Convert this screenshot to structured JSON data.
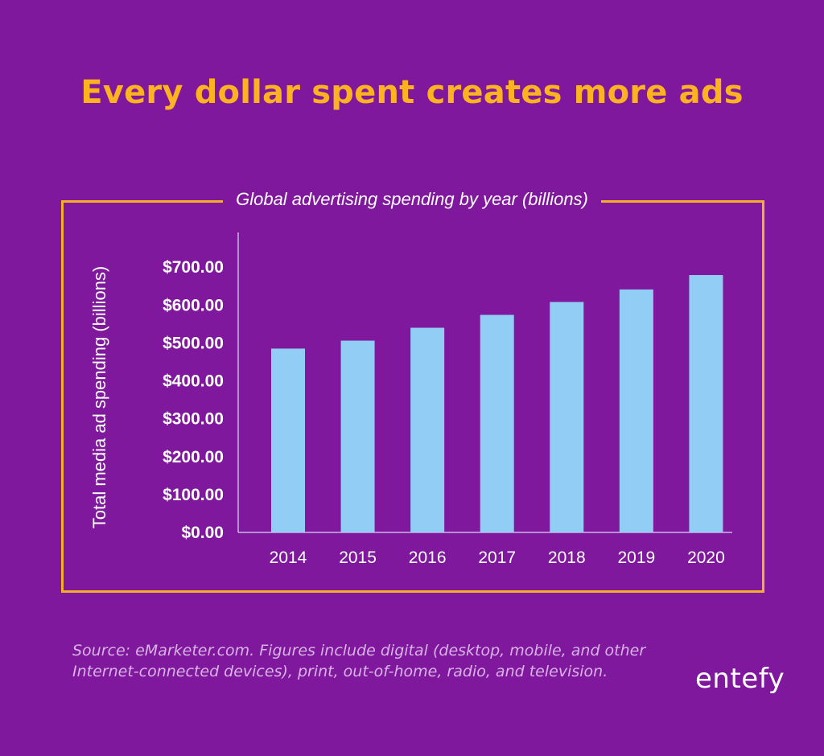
{
  "headline": "Every dollar spent creates more ads",
  "source_note": "Source: eMarketer.com. Figures include digital (desktop, mobile, and other Internet-connected devices), print, out-of-home, radio, and television.",
  "logo_text": "entefy",
  "colors": {
    "background": "#7f189d",
    "headline": "#fcb31f",
    "frame": "#f5b02a",
    "bar": "#92cdf5",
    "text": "#ffffff"
  },
  "chart_data": {
    "type": "bar",
    "title": "Global advertising spending by year (billions)",
    "xlabel": "",
    "ylabel": "Total media ad spending (billions)",
    "categories": [
      "2014",
      "2015",
      "2016",
      "2017",
      "2018",
      "2019",
      "2020"
    ],
    "values": [
      485,
      506,
      540,
      574,
      608,
      641,
      679
    ],
    "ylim": [
      0,
      800
    ],
    "yticks": [
      0,
      100,
      200,
      300,
      400,
      500,
      600,
      700
    ],
    "ytick_labels": [
      "$0.00",
      "$100.00",
      "$200.00",
      "$300.00",
      "$400.00",
      "$500.00",
      "$600.00",
      "$700.00"
    ],
    "grid": false,
    "legend": "none"
  }
}
